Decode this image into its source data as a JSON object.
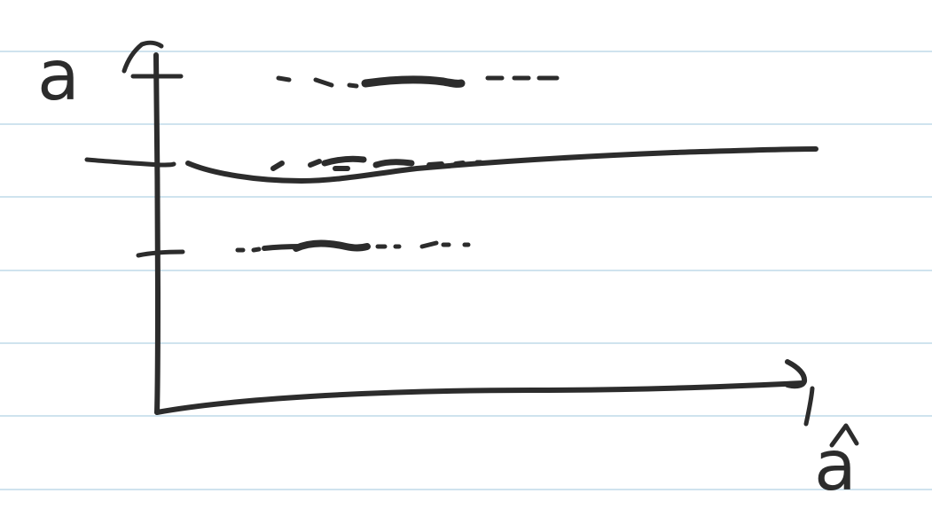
{
  "labels": {
    "y_axis": "a",
    "x_axis": "a",
    "x_axis_hat": "^",
    "y_axis_hat": "^",
    "y_axis_tag": "f"
  },
  "colors": {
    "ink": "#2c2c2c",
    "ruled_lines": "#cfe3ee",
    "paper": "#ffffff"
  }
}
